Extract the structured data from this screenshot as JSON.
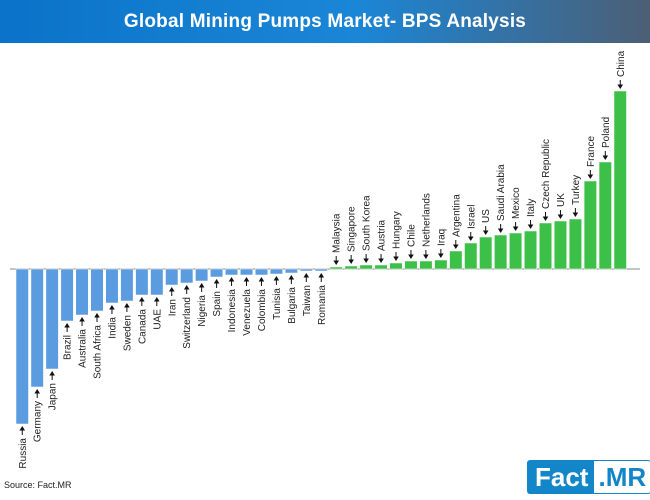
{
  "title": "Global Mining Pumps Market- BPS Analysis",
  "source": "Source: Fact.MR",
  "logo": {
    "left": "Fact",
    "right": ".MR"
  },
  "colors": {
    "negative": "#5b9be0",
    "positive": "#3cc048",
    "title_bg": "#0a73c9"
  },
  "chart_data": {
    "type": "bar",
    "title": "Global Mining Pumps Market- BPS Analysis",
    "xlabel": "",
    "ylabel": "",
    "ylim": [
      -155,
      178
    ],
    "grid": false,
    "legend": "none",
    "categories": [
      "Russia",
      "Germany",
      "Japan",
      "Brazil",
      "Australia",
      "South Africa",
      "India",
      "Sweden",
      "Canada",
      "UAE",
      "Iran",
      "Switzerland",
      "Nigeria",
      "Spain",
      "Indonesia",
      "Venezuela",
      "Colombia",
      "Tunisia",
      "Bulgaria",
      "Taiwan",
      "Romania",
      "Malaysia",
      "Singapore",
      "South Korea",
      "Austria",
      "Hungary",
      "Chile",
      "Netherlands",
      "Iraq",
      "Argentina",
      "Israel",
      "US",
      "Saudi Arabia",
      "Mexico",
      "Italy",
      "Czech Republic",
      "UK",
      "Turkey",
      "France",
      "Poland",
      "China"
    ],
    "values": [
      -155,
      -118,
      -100,
      -52,
      -46,
      -42,
      -34,
      -32,
      -26,
      -26,
      -16,
      -14,
      -12,
      -8,
      -6,
      -6,
      -6,
      -5,
      -4,
      -2,
      -2,
      2,
      3,
      4,
      4,
      6,
      8,
      8,
      9,
      18,
      26,
      32,
      34,
      36,
      38,
      46,
      48,
      50,
      88,
      107,
      178
    ]
  }
}
